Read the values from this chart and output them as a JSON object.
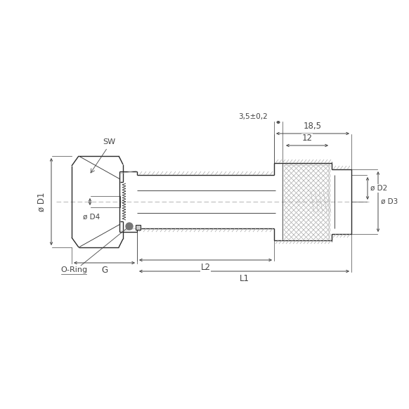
{
  "bg_color": "#ffffff",
  "line_color": "#2a2a2a",
  "dim_color": "#444444",
  "labels": {
    "D1": "ø D1",
    "D2": "ø D2",
    "D3": "ø D3",
    "D4": "ø D4",
    "G": "G",
    "SW": "SW",
    "L1": "L1",
    "L2": "L2",
    "dim_185": "18,5",
    "dim_12": "12",
    "dim_35": "3,5±0,2",
    "oring": "O-Ring"
  }
}
